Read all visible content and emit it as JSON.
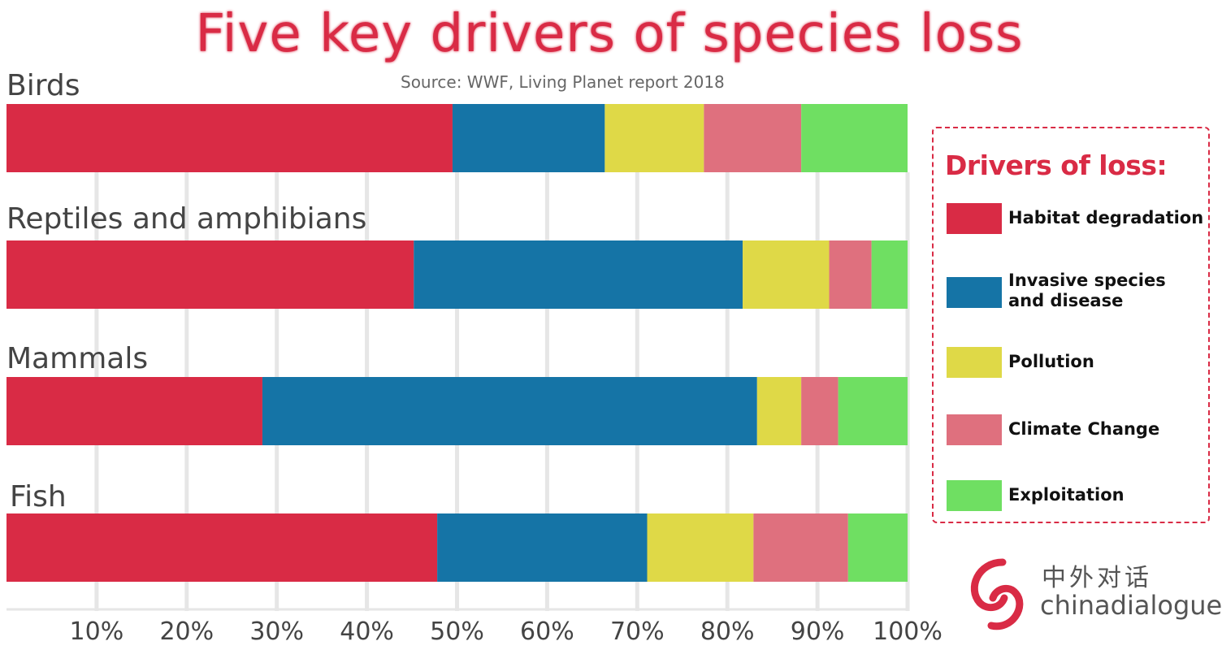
{
  "chart_data": {
    "type": "bar",
    "orientation": "horizontal",
    "stacked": true,
    "title": "Five key drivers of species loss",
    "subtitle": "Source: WWF, Living Planet report 2018",
    "categories": [
      "Birds",
      "Reptiles and amphibians",
      "Mammals",
      "Fish"
    ],
    "series": [
      {
        "name": "Habitat degradation",
        "color": "#d92b45",
        "values": [
          49.5,
          45.2,
          28.4,
          47.8
        ]
      },
      {
        "name": "Invasive species and disease",
        "color": "#1574a6",
        "values": [
          16.9,
          36.5,
          54.9,
          23.3
        ]
      },
      {
        "name": "Pollution",
        "color": "#dfd947",
        "values": [
          11.0,
          9.6,
          4.9,
          11.8
        ]
      },
      {
        "name": "Climate Change",
        "color": "#df707e",
        "values": [
          10.8,
          4.7,
          4.1,
          10.5
        ]
      },
      {
        "name": "Exploitation",
        "color": "#6fdf62",
        "values": [
          11.8,
          4.0,
          7.7,
          6.6
        ]
      }
    ],
    "xlim": [
      0,
      100
    ],
    "xticks": [
      "10%",
      "20%",
      "30%",
      "40%",
      "50%",
      "60%",
      "70%",
      "80%",
      "90%",
      "100%"
    ],
    "grid": true,
    "legend": {
      "title": "Drivers of loss:",
      "position": "right"
    }
  },
  "legend_labels": [
    [
      "Habitat degradation"
    ],
    [
      "Invasive species",
      "and disease"
    ],
    [
      "Pollution"
    ],
    [
      "Climate Change"
    ],
    [
      "Exploitation"
    ]
  ],
  "logo": {
    "cn": "中外对话",
    "en": "chinadialogue"
  }
}
